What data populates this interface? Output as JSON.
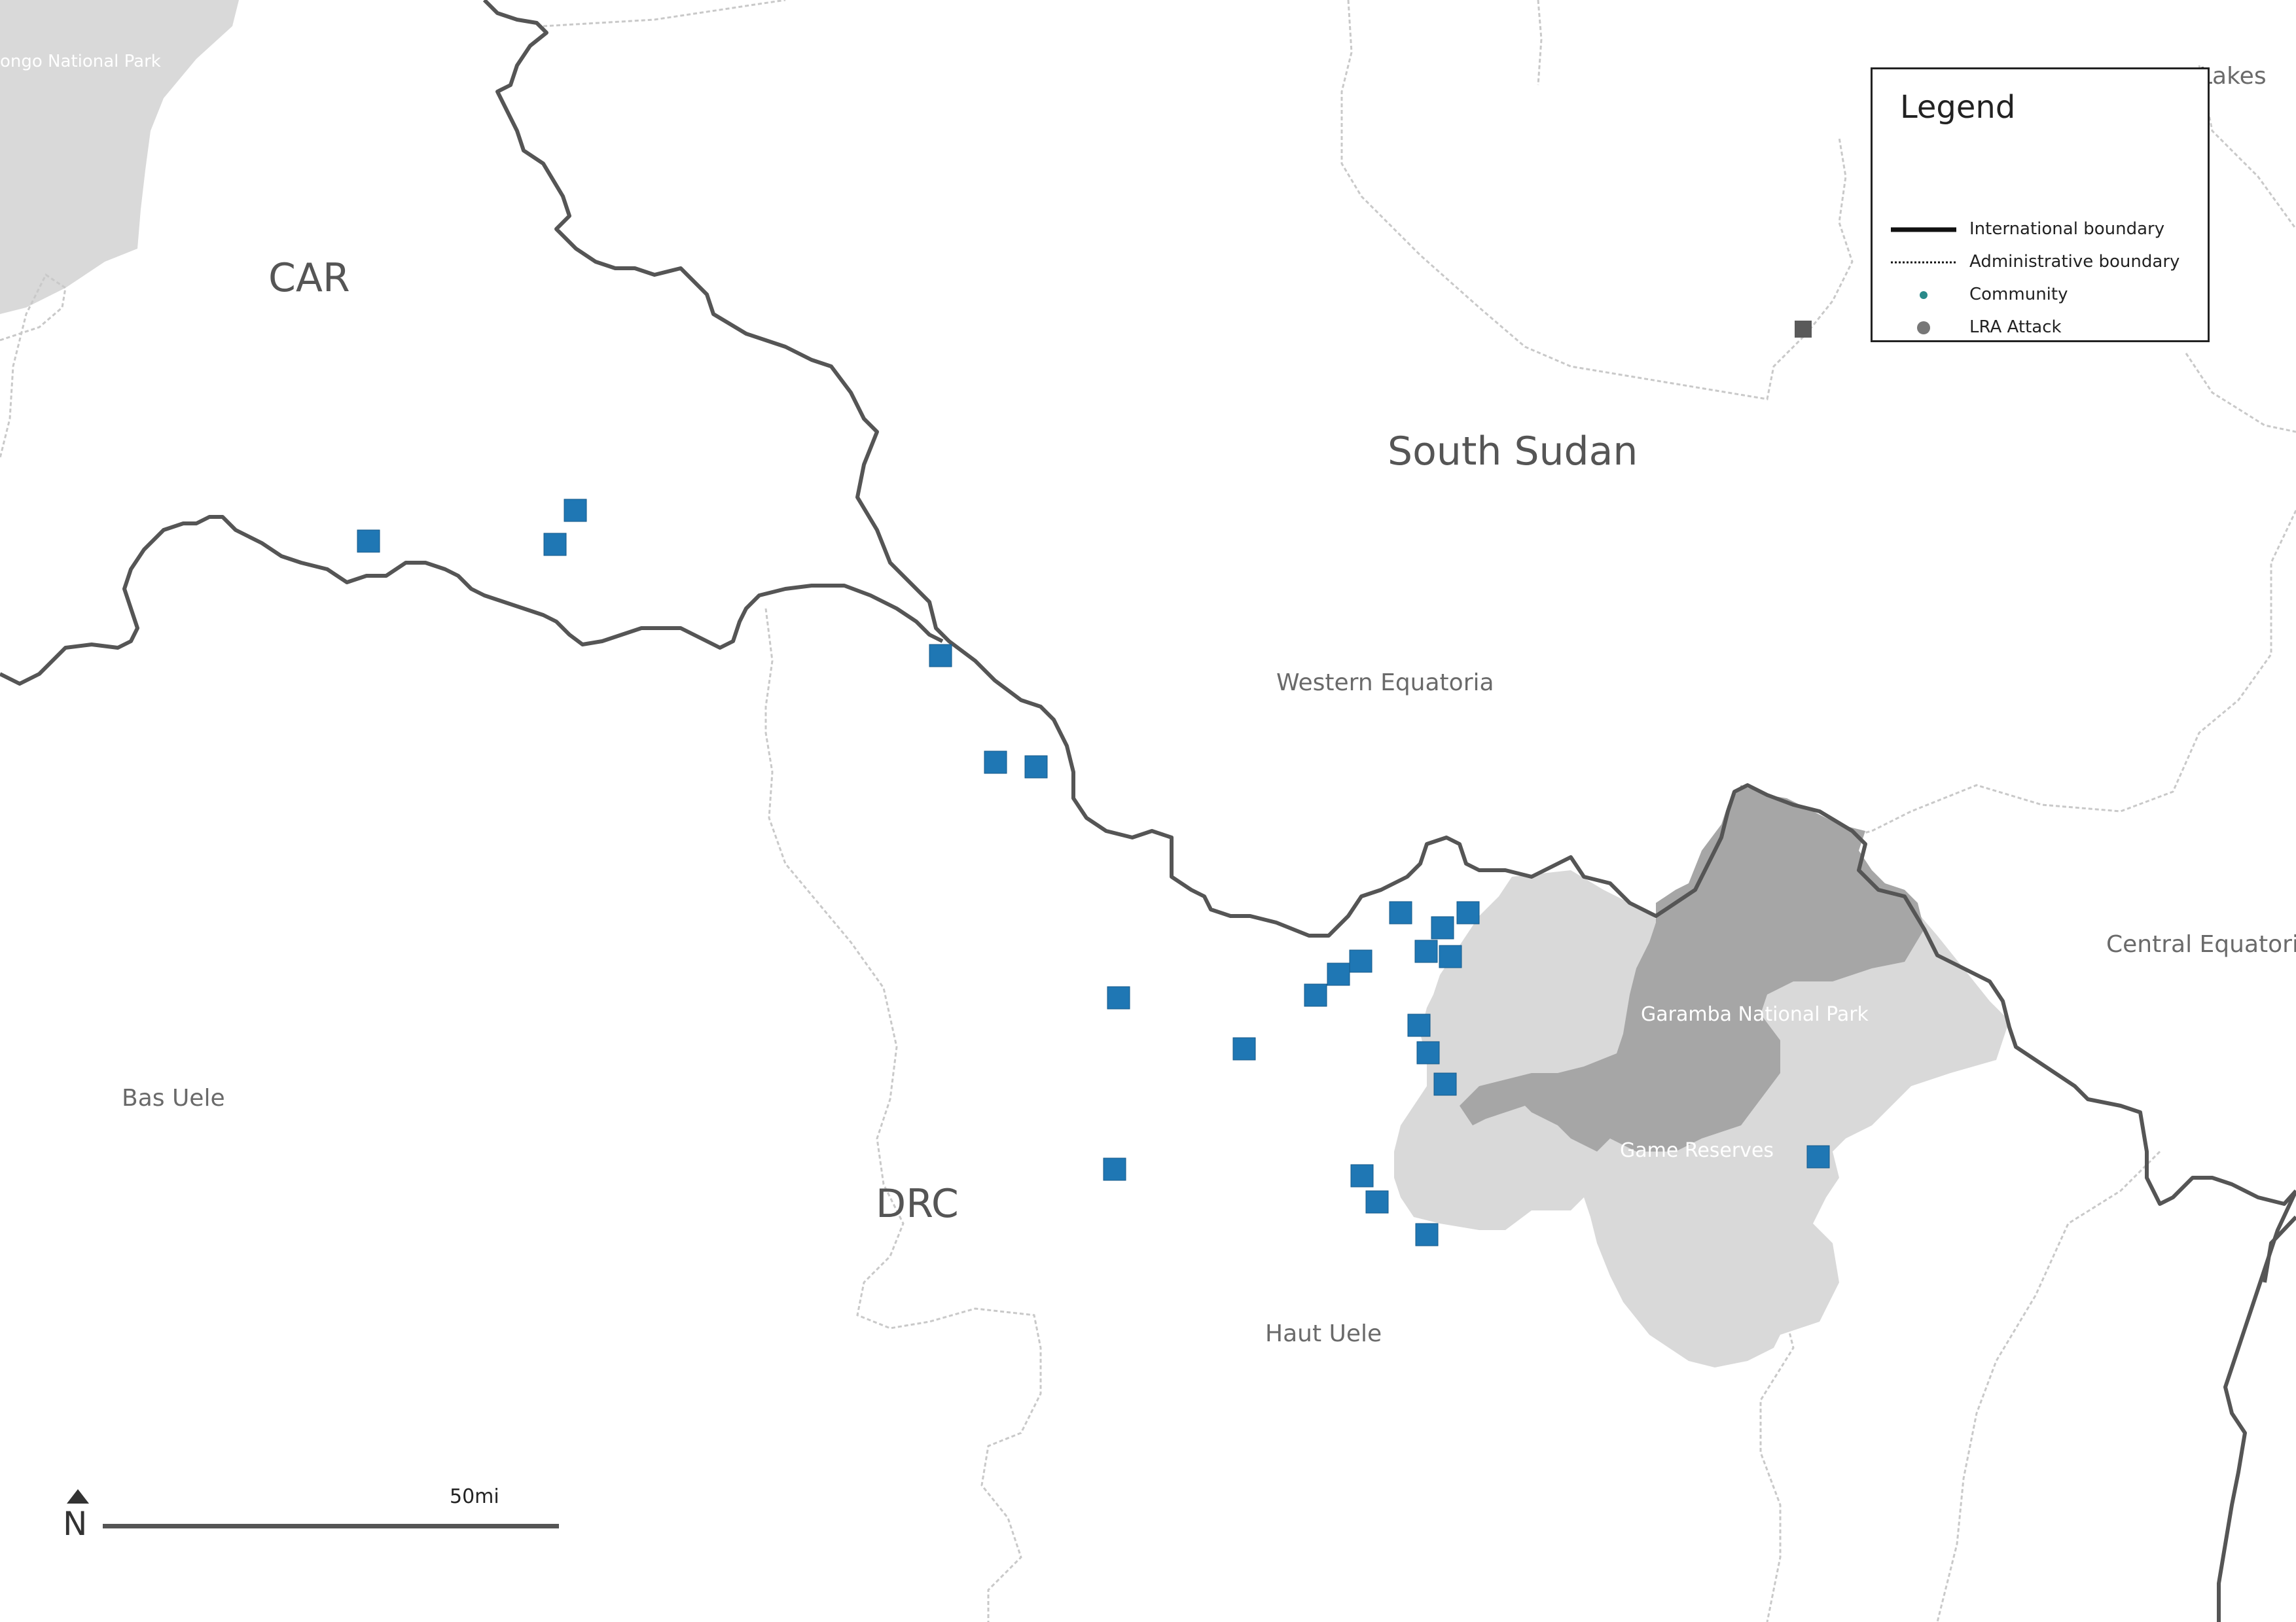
{
  "map": {
    "labels": {
      "car": "CAR",
      "south_sudan": "South Sudan",
      "drc": "DRC",
      "western_equatoria": "Western Equatoria",
      "central_equatoria": "Central Equatoria",
      "bas_uele": "Bas Uele",
      "haut_uele": "Haut Uele",
      "garamba": "Garamba National Park",
      "game_reserves": "Game Reserves",
      "ongo_park": "ongo National Park",
      "lakes": "Lakes"
    },
    "colors": {
      "background": "#ffffff",
      "park_light": "#d9d9d9",
      "park_dark": "#a6a6a6",
      "intl_boundary": "#555555",
      "admin_boundary": "#c8c8c8",
      "marker_blue": "#1f77b4",
      "marker_gray": "#5a5a5a"
    }
  },
  "legend": {
    "title": "Legend",
    "items": [
      {
        "label": "International boundary",
        "icon": "solid-line"
      },
      {
        "label": "Administrative boundary",
        "icon": "dotted-line"
      },
      {
        "label": "Community",
        "icon": "teal-dot",
        "color": "#2a8a8a"
      },
      {
        "label": "LRA Attack",
        "icon": "gray-dot",
        "color": "#777777"
      }
    ]
  },
  "scale": {
    "label": "50mi",
    "north": "N"
  }
}
